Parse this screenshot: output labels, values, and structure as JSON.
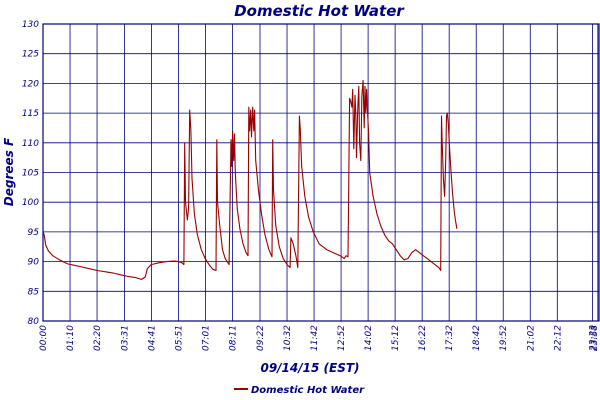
{
  "chart_data": {
    "type": "line",
    "title": "Domestic Hot Water",
    "xlabel": "09/14/15 (EST)",
    "ylabel": "Degrees F",
    "ylim": [
      80,
      130
    ],
    "yticks": [
      "80",
      "85",
      "90",
      "95",
      "100",
      "105",
      "110",
      "115",
      "120",
      "125",
      "130"
    ],
    "xlim": [
      0,
      1440
    ],
    "xticks": [
      {
        "t": 0,
        "label": "00:00"
      },
      {
        "t": 70,
        "label": "01:10"
      },
      {
        "t": 140,
        "label": "02:20"
      },
      {
        "t": 211,
        "label": "03:31"
      },
      {
        "t": 281,
        "label": "04:41"
      },
      {
        "t": 351,
        "label": "05:51"
      },
      {
        "t": 421,
        "label": "07:01"
      },
      {
        "t": 491,
        "label": "08:11"
      },
      {
        "t": 562,
        "label": "09:22"
      },
      {
        "t": 632,
        "label": "10:32"
      },
      {
        "t": 702,
        "label": "11:42"
      },
      {
        "t": 772,
        "label": "12:52"
      },
      {
        "t": 842,
        "label": "14:02"
      },
      {
        "t": 912,
        "label": "15:12"
      },
      {
        "t": 982,
        "label": "16:22"
      },
      {
        "t": 1052,
        "label": "17:32"
      },
      {
        "t": 1122,
        "label": "18:42"
      },
      {
        "t": 1192,
        "label": "19:52"
      },
      {
        "t": 1262,
        "label": "21:02"
      },
      {
        "t": 1332,
        "label": "22:12"
      },
      {
        "t": 1423,
        "label": "23:23"
      },
      {
        "t": 1437,
        "label": "23:58"
      }
    ],
    "grid": true,
    "legend_position": "bottom-center",
    "series": [
      {
        "name": "Domestic Hot Water",
        "color": "#990000",
        "points": [
          [
            0,
            95.0
          ],
          [
            3,
            94.5
          ],
          [
            7,
            92.8
          ],
          [
            14,
            91.8
          ],
          [
            25,
            91.0
          ],
          [
            40,
            90.4
          ],
          [
            55,
            89.9
          ],
          [
            65,
            89.6
          ],
          [
            80,
            89.4
          ],
          [
            100,
            89.1
          ],
          [
            120,
            88.8
          ],
          [
            140,
            88.5
          ],
          [
            160,
            88.3
          ],
          [
            180,
            88.1
          ],
          [
            200,
            87.8
          ],
          [
            220,
            87.5
          ],
          [
            240,
            87.3
          ],
          [
            255,
            87.0
          ],
          [
            265,
            87.4
          ],
          [
            270,
            88.8
          ],
          [
            280,
            89.5
          ],
          [
            300,
            89.8
          ],
          [
            320,
            90.0
          ],
          [
            340,
            90.1
          ],
          [
            350,
            90.0
          ],
          [
            360,
            89.8
          ],
          [
            365,
            89.5
          ],
          [
            367,
            110.0
          ],
          [
            369,
            100.0
          ],
          [
            374,
            97.0
          ],
          [
            377,
            99.0
          ],
          [
            380,
            115.5
          ],
          [
            383,
            112.0
          ],
          [
            386,
            104.0
          ],
          [
            392,
            98.0
          ],
          [
            400,
            94.5
          ],
          [
            410,
            92.0
          ],
          [
            420,
            90.5
          ],
          [
            430,
            89.5
          ],
          [
            440,
            88.7
          ],
          [
            448,
            88.5
          ],
          [
            450,
            110.5
          ],
          [
            452,
            100.0
          ],
          [
            458,
            96.0
          ],
          [
            465,
            92.0
          ],
          [
            472,
            90.5
          ],
          [
            482,
            89.5
          ],
          [
            487,
            110.5
          ],
          [
            489,
            106.0
          ],
          [
            491,
            112.0
          ],
          [
            494,
            107.0
          ],
          [
            496,
            111.5
          ],
          [
            498,
            105.0
          ],
          [
            503,
            99.0
          ],
          [
            510,
            95.5
          ],
          [
            518,
            93.0
          ],
          [
            526,
            91.5
          ],
          [
            531,
            91.0
          ],
          [
            533,
            116.0
          ],
          [
            535,
            112.0
          ],
          [
            538,
            115.5
          ],
          [
            540,
            111.0
          ],
          [
            543,
            116.0
          ],
          [
            546,
            112.0
          ],
          [
            548,
            115.5
          ],
          [
            551,
            107.0
          ],
          [
            558,
            102.0
          ],
          [
            566,
            98.0
          ],
          [
            575,
            94.5
          ],
          [
            585,
            92.0
          ],
          [
            593,
            90.8
          ],
          [
            595,
            110.5
          ],
          [
            597,
            102.0
          ],
          [
            603,
            96.0
          ],
          [
            612,
            92.5
          ],
          [
            622,
            90.5
          ],
          [
            632,
            89.5
          ],
          [
            640,
            89.0
          ],
          [
            642,
            94.0
          ],
          [
            648,
            93.0
          ],
          [
            655,
            91.0
          ],
          [
            660,
            89.0
          ],
          [
            664,
            114.5
          ],
          [
            666,
            112.5
          ],
          [
            670,
            106.0
          ],
          [
            678,
            101.0
          ],
          [
            688,
            97.5
          ],
          [
            700,
            95.0
          ],
          [
            715,
            93.0
          ],
          [
            735,
            92.0
          ],
          [
            755,
            91.4
          ],
          [
            770,
            91.0
          ],
          [
            780,
            90.5
          ],
          [
            785,
            91.0
          ],
          [
            790,
            90.8
          ],
          [
            794,
            117.5
          ],
          [
            797,
            117.0
          ],
          [
            800,
            116.0
          ],
          [
            802,
            119.0
          ],
          [
            805,
            109.0
          ],
          [
            808,
            118.0
          ],
          [
            810,
            115.0
          ],
          [
            812,
            107.5
          ],
          [
            815,
            115.5
          ],
          [
            818,
            119.5
          ],
          [
            820,
            110.0
          ],
          [
            823,
            107.0
          ],
          [
            826,
            118.0
          ],
          [
            829,
            120.5
          ],
          [
            832,
            112.5
          ],
          [
            834,
            119.5
          ],
          [
            836,
            115.0
          ],
          [
            838,
            119.0
          ],
          [
            840,
            116.0
          ],
          [
            843,
            112.0
          ],
          [
            846,
            105.0
          ],
          [
            855,
            101.0
          ],
          [
            865,
            98.0
          ],
          [
            875,
            96.0
          ],
          [
            885,
            94.5
          ],
          [
            895,
            93.5
          ],
          [
            905,
            93.0
          ],
          [
            915,
            92.0
          ],
          [
            925,
            91.0
          ],
          [
            935,
            90.3
          ],
          [
            945,
            90.5
          ],
          [
            955,
            91.5
          ],
          [
            965,
            92.0
          ],
          [
            975,
            91.5
          ],
          [
            985,
            91.0
          ],
          [
            995,
            90.5
          ],
          [
            1005,
            90.0
          ],
          [
            1015,
            89.5
          ],
          [
            1025,
            89.0
          ],
          [
            1030,
            88.5
          ],
          [
            1032,
            114.5
          ],
          [
            1034,
            110.0
          ],
          [
            1037,
            104.0
          ],
          [
            1040,
            101.0
          ],
          [
            1043,
            107.0
          ],
          [
            1045,
            114.5
          ],
          [
            1047,
            115.0
          ],
          [
            1050,
            113.0
          ],
          [
            1053,
            109.0
          ],
          [
            1056,
            106.0
          ],
          [
            1060,
            102.0
          ],
          [
            1065,
            98.5
          ],
          [
            1068,
            97.0
          ],
          [
            1072,
            95.5
          ]
        ]
      }
    ]
  }
}
